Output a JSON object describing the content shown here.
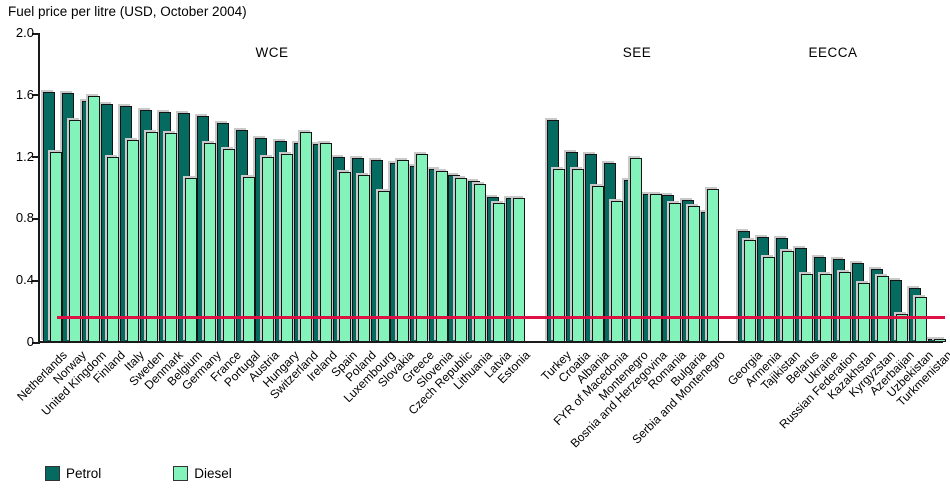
{
  "title": "Fuel price per litre (USD, October 2004)",
  "legend": {
    "petrol_label": "Petrol",
    "diesel_label": "Diesel"
  },
  "colors": {
    "petrol": "#056a5f",
    "diesel": "#83f2bb",
    "reference_line": "#dd1144",
    "axis": "#1a1a1a"
  },
  "chart_data": {
    "type": "bar",
    "title": "Fuel price per litre (USD, October 2004)",
    "xlabel": "",
    "ylabel": "",
    "ylim": [
      0,
      2.0
    ],
    "ytick_labels": [
      "0",
      "0.4",
      "0.8",
      "1.2",
      "1.6",
      "2.0"
    ],
    "ytick_values": [
      0,
      0.4,
      0.8,
      1.2,
      1.6,
      2.0
    ],
    "grid": false,
    "legend_position": "bottom-left",
    "series_names": [
      "Petrol",
      "Diesel"
    ],
    "reference_line": {
      "value": 0.16
    },
    "groups": [
      {
        "name": "WCE",
        "countries": [
          {
            "label": "Netherlands",
            "petrol": 1.62,
            "diesel": 1.23
          },
          {
            "label": "Norway",
            "petrol": 1.61,
            "diesel": 1.44
          },
          {
            "label": "United Kingdom",
            "petrol": 1.56,
            "diesel": 1.59
          },
          {
            "label": "Finland",
            "petrol": 1.54,
            "diesel": 1.2
          },
          {
            "label": "Italy",
            "petrol": 1.53,
            "diesel": 1.31
          },
          {
            "label": "Sweden",
            "petrol": 1.5,
            "diesel": 1.36
          },
          {
            "label": "Denmark",
            "petrol": 1.49,
            "diesel": 1.35
          },
          {
            "label": "Belgium",
            "petrol": 1.48,
            "diesel": 1.06
          },
          {
            "label": "Germany",
            "petrol": 1.46,
            "diesel": 1.29
          },
          {
            "label": "France",
            "petrol": 1.42,
            "diesel": 1.25
          },
          {
            "label": "Portugal",
            "petrol": 1.37,
            "diesel": 1.07
          },
          {
            "label": "Austria",
            "petrol": 1.32,
            "diesel": 1.2
          },
          {
            "label": "Hungary",
            "petrol": 1.3,
            "diesel": 1.22
          },
          {
            "label": "Switzerland",
            "petrol": 1.29,
            "diesel": 1.36
          },
          {
            "label": "Ireland",
            "petrol": 1.28,
            "diesel": 1.29
          },
          {
            "label": "Spain",
            "petrol": 1.2,
            "diesel": 1.1
          },
          {
            "label": "Poland",
            "petrol": 1.19,
            "diesel": 1.08
          },
          {
            "label": "Luxembourg",
            "petrol": 1.18,
            "diesel": 0.98
          },
          {
            "label": "Slovakia",
            "petrol": 1.16,
            "diesel": 1.18
          },
          {
            "label": "Greece",
            "petrol": 1.14,
            "diesel": 1.22
          },
          {
            "label": "Slovenia",
            "petrol": 1.12,
            "diesel": 1.11
          },
          {
            "label": "Czech Republic",
            "petrol": 1.08,
            "diesel": 1.06
          },
          {
            "label": "Lithuania",
            "petrol": 1.04,
            "diesel": 1.02
          },
          {
            "label": "Latvia",
            "petrol": 0.94,
            "diesel": 0.9
          },
          {
            "label": "Estonia",
            "petrol": 0.93,
            "diesel": 0.93
          }
        ]
      },
      {
        "name": "SEE",
        "countries": [
          {
            "label": "Turkey",
            "petrol": 1.44,
            "diesel": 1.12
          },
          {
            "label": "Croatia",
            "petrol": 1.23,
            "diesel": 1.12
          },
          {
            "label": "Albania",
            "petrol": 1.22,
            "diesel": 1.01
          },
          {
            "label": "FYR of Macedonia",
            "petrol": 1.16,
            "diesel": 0.91
          },
          {
            "label": "Montenegro",
            "petrol": 1.05,
            "diesel": 1.19
          },
          {
            "label": "Bosnia and Herzegovina",
            "petrol": 0.96,
            "diesel": 0.96
          },
          {
            "label": "Romania",
            "petrol": 0.95,
            "diesel": 0.9
          },
          {
            "label": "Bulgaria",
            "petrol": 0.92,
            "diesel": 0.88
          },
          {
            "label": "Serbia and Montenegro",
            "petrol": 0.84,
            "diesel": 0.99
          }
        ]
      },
      {
        "name": "EECCA",
        "countries": [
          {
            "label": "Georgia",
            "petrol": 0.72,
            "diesel": 0.66
          },
          {
            "label": "Armenia",
            "petrol": 0.68,
            "diesel": 0.55
          },
          {
            "label": "Tajikistan",
            "petrol": 0.67,
            "diesel": 0.59
          },
          {
            "label": "Belarus",
            "petrol": 0.61,
            "diesel": 0.44
          },
          {
            "label": "Ukraine",
            "petrol": 0.55,
            "diesel": 0.44
          },
          {
            "label": "Russian Federation",
            "petrol": 0.54,
            "diesel": 0.45
          },
          {
            "label": "Kazakhstan",
            "petrol": 0.51,
            "diesel": 0.38
          },
          {
            "label": "Kyrgyzstan",
            "petrol": 0.47,
            "diesel": 0.43
          },
          {
            "label": "Azerbaijan",
            "petrol": 0.4,
            "diesel": 0.18
          },
          {
            "label": "Uzbekistan",
            "petrol": 0.35,
            "diesel": 0.29
          },
          {
            "label": "Turkmenistan",
            "petrol": 0.02,
            "diesel": 0.02
          }
        ]
      }
    ]
  }
}
